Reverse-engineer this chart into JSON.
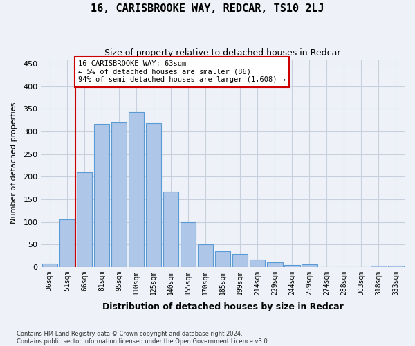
{
  "title": "16, CARISBROOKE WAY, REDCAR, TS10 2LJ",
  "subtitle": "Size of property relative to detached houses in Redcar",
  "xlabel": "Distribution of detached houses by size in Redcar",
  "ylabel": "Number of detached properties",
  "categories": [
    "36sqm",
    "51sqm",
    "66sqm",
    "81sqm",
    "95sqm",
    "110sqm",
    "125sqm",
    "140sqm",
    "155sqm",
    "170sqm",
    "185sqm",
    "199sqm",
    "214sqm",
    "229sqm",
    "244sqm",
    "259sqm",
    "274sqm",
    "288sqm",
    "303sqm",
    "318sqm",
    "333sqm"
  ],
  "values": [
    7,
    106,
    210,
    317,
    320,
    343,
    319,
    167,
    99,
    50,
    35,
    29,
    17,
    10,
    4,
    6,
    0,
    0,
    0,
    3,
    2
  ],
  "bar_color": "#aec6e8",
  "bar_edge_color": "#5b9bd5",
  "vline_pos": 1.5,
  "vline_color": "#cc0000",
  "annotation_text": "16 CARISBROOKE WAY: 63sqm\n← 5% of detached houses are smaller (86)\n94% of semi-detached houses are larger (1,608) →",
  "annotation_box_color": "#ffffff",
  "annotation_box_edge": "#cc0000",
  "ylim": [
    0,
    460
  ],
  "yticks": [
    0,
    50,
    100,
    150,
    200,
    250,
    300,
    350,
    400,
    450
  ],
  "footer": "Contains HM Land Registry data © Crown copyright and database right 2024.\nContains public sector information licensed under the Open Government Licence v3.0.",
  "bg_color": "#eef2f8",
  "grid_color": "#c8d0de"
}
